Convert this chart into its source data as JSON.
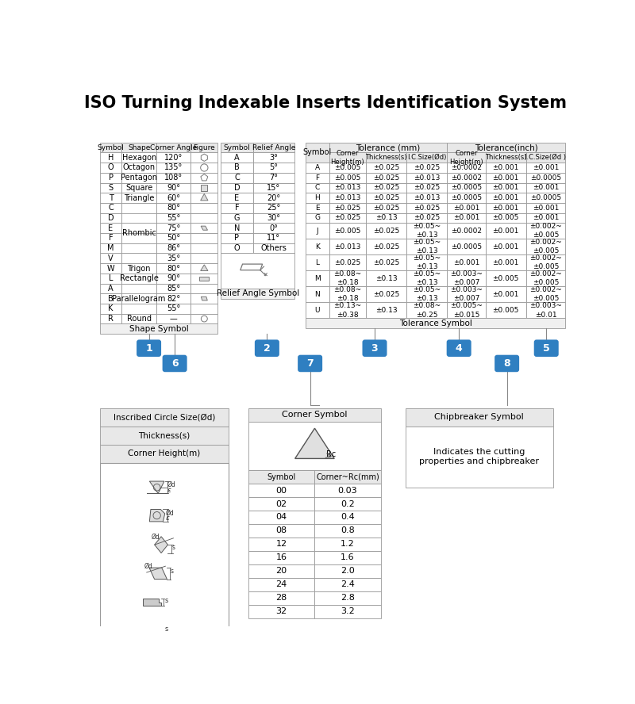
{
  "title": "ISO Turning Indexable Inserts Identification System",
  "shape_table": {
    "headers": [
      "Symbol",
      "Shape",
      "Corner Angle",
      "Figure"
    ],
    "rows_info": [
      {
        "sym": "H",
        "shape": "Hexagon",
        "angle": "120°",
        "fig": "hexagon",
        "shape_span": 1
      },
      {
        "sym": "O",
        "shape": "Octagon",
        "angle": "135°",
        "fig": "octagon",
        "shape_span": 1
      },
      {
        "sym": "P",
        "shape": "Pentagon",
        "angle": "108°",
        "fig": "pentagon",
        "shape_span": 1
      },
      {
        "sym": "S",
        "shape": "Square",
        "angle": "90°",
        "fig": "square",
        "shape_span": 1
      },
      {
        "sym": "T",
        "shape": "Triangle",
        "angle": "60°",
        "fig": "triangle",
        "shape_span": 1
      },
      {
        "sym": "C",
        "shape": "Rhombic",
        "angle": "80°",
        "fig": "",
        "shape_span": 6
      },
      {
        "sym": "D",
        "shape": "",
        "angle": "55°",
        "fig": "",
        "shape_span": 0
      },
      {
        "sym": "E",
        "shape": "",
        "angle": "75°",
        "fig": "rhombic",
        "shape_span": 0
      },
      {
        "sym": "F",
        "shape": "",
        "angle": "50°",
        "fig": "",
        "shape_span": 0
      },
      {
        "sym": "M",
        "shape": "",
        "angle": "86°",
        "fig": "",
        "shape_span": 0
      },
      {
        "sym": "V",
        "shape": "",
        "angle": "35°",
        "fig": "",
        "shape_span": 0
      },
      {
        "sym": "W",
        "shape": "Trigon",
        "angle": "80°",
        "fig": "trigon",
        "shape_span": 1
      },
      {
        "sym": "L",
        "shape": "Rectangle",
        "angle": "90°",
        "fig": "rectangle",
        "shape_span": 1
      },
      {
        "sym": "A",
        "shape": "Parallelogram",
        "angle": "85°",
        "fig": "",
        "shape_span": 3
      },
      {
        "sym": "B",
        "shape": "",
        "angle": "82°",
        "fig": "parallelogram",
        "shape_span": 0
      },
      {
        "sym": "K",
        "shape": "",
        "angle": "55°",
        "fig": "",
        "shape_span": 0
      },
      {
        "sym": "R",
        "shape": "Round",
        "angle": "—",
        "fig": "round",
        "shape_span": 1
      }
    ],
    "footer": "Shape Symbol"
  },
  "relief_table": {
    "headers": [
      "Symbol",
      "Relief Angle"
    ],
    "rows": [
      [
        "A",
        "3°"
      ],
      [
        "B",
        "5°"
      ],
      [
        "C",
        "7°"
      ],
      [
        "D",
        "15°"
      ],
      [
        "E",
        "20°"
      ],
      [
        "F",
        "25°"
      ],
      [
        "G",
        "30°"
      ],
      [
        "N",
        "0°"
      ],
      [
        "P",
        "11°"
      ],
      [
        "O",
        "Others"
      ]
    ],
    "footer": "Relief Angle Symbol"
  },
  "tolerance_rows": [
    [
      "A",
      "±0.005",
      "±0.025",
      "±0.025",
      "±0.0002",
      "±0.001",
      "±0.001"
    ],
    [
      "F",
      "±0.005",
      "±0.025",
      "±0.013",
      "±0.0002",
      "±0.001",
      "±0.0005"
    ],
    [
      "C",
      "±0.013",
      "±0.025",
      "±0.025",
      "±0.0005",
      "±0.001",
      "±0.001"
    ],
    [
      "H",
      "±0.013",
      "±0.025",
      "±0.013",
      "±0.0005",
      "±0.001",
      "±0.0005"
    ],
    [
      "E",
      "±0.025",
      "±0.025",
      "±0.025",
      "±0.001",
      "±0.001",
      "±0.001"
    ],
    [
      "G",
      "±0.025",
      "±0.13",
      "±0.025",
      "±0.001",
      "±0.005",
      "±0.001"
    ],
    [
      "J",
      "±0.005",
      "±0.025",
      "±0.05~\n±0.13",
      "±0.0002",
      "±0.001",
      "±0.002~\n±0.005"
    ],
    [
      "K",
      "±0.013",
      "±0.025",
      "±0.05~\n±0.13",
      "±0.0005",
      "±0.001",
      "±0.002~\n±0.005"
    ],
    [
      "L",
      "±0.025",
      "±0.025",
      "±0.05~\n±0.13",
      "±0.001",
      "±0.001",
      "±0.002~\n±0.005"
    ],
    [
      "M",
      "±0.08~\n±0.18",
      "±0.13",
      "±0.05~\n±0.13",
      "±0.003~\n±0.007",
      "±0.005",
      "±0.002~\n±0.005"
    ],
    [
      "N",
      "±0.08~\n±0.18",
      "±0.025",
      "±0.05~\n±0.13",
      "±0.003~\n±0.007",
      "±0.001",
      "±0.002~\n±0.005"
    ],
    [
      "U",
      "±0.13~\n±0.38",
      "±0.13",
      "±0.08~\n±0.25",
      "±0.005~\n±0.015",
      "±0.005",
      "±0.003~\n±0.01"
    ]
  ],
  "corner_rows": [
    [
      "00",
      "0.03"
    ],
    [
      "02",
      "0.2"
    ],
    [
      "04",
      "0.4"
    ],
    [
      "08",
      "0.8"
    ],
    [
      "12",
      "1.2"
    ],
    [
      "16",
      "1.6"
    ],
    [
      "20",
      "2.0"
    ],
    [
      "24",
      "2.4"
    ],
    [
      "28",
      "2.8"
    ],
    [
      "32",
      "3.2"
    ]
  ],
  "inscribed_title": "Inscribed Circle Size(Ød)",
  "thickness_title": "Thickness(s)",
  "corner_height_title": "Corner Height(m)",
  "chipbreaker_title": "Chipbreaker Symbol",
  "chipbreaker_text": "Indicates the cutting\nproperties and chipbreaker",
  "bubble_color": "#2f7fc1"
}
